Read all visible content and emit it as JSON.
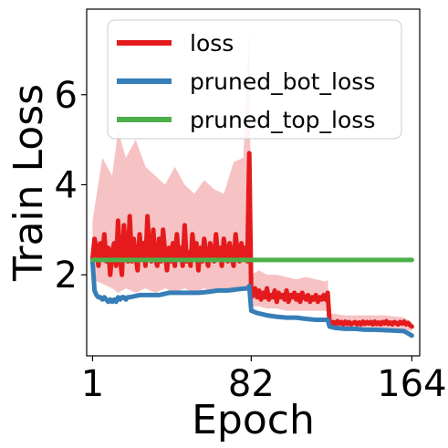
{
  "chart_data": {
    "type": "line",
    "xlabel": "Epoch",
    "ylabel": "Train Loss",
    "xlim": [
      -2,
      168
    ],
    "ylim": [
      0.2,
      7.9
    ],
    "xticks": [
      1,
      82,
      164
    ],
    "yticks": [
      2,
      4,
      6
    ],
    "grid": false,
    "legend_position": "top",
    "series": [
      {
        "name": "loss",
        "color": "#e41a1c",
        "band_color": "#f4b3b4",
        "points": [
          [
            1,
            2.35
          ],
          [
            2,
            2.8
          ],
          [
            3,
            2.6
          ],
          [
            4,
            2.2
          ],
          [
            5,
            2.7
          ],
          [
            6,
            2.4
          ],
          [
            7,
            2.9
          ],
          [
            8,
            2.3
          ],
          [
            9,
            2.6
          ],
          [
            10,
            2.0
          ],
          [
            11,
            2.5
          ],
          [
            12,
            2.7
          ],
          [
            13,
            2.2
          ],
          [
            14,
            3.2
          ],
          [
            15,
            2.4
          ],
          [
            16,
            2.0
          ],
          [
            17,
            3.1
          ],
          [
            18,
            2.5
          ],
          [
            19,
            2.3
          ],
          [
            20,
            3.3
          ],
          [
            21,
            2.3
          ],
          [
            22,
            2.8
          ],
          [
            23,
            2.4
          ],
          [
            24,
            2.1
          ],
          [
            25,
            2.9
          ],
          [
            26,
            2.4
          ],
          [
            27,
            2.7
          ],
          [
            28,
            2.2
          ],
          [
            29,
            3.3
          ],
          [
            30,
            2.5
          ],
          [
            31,
            2.3
          ],
          [
            32,
            3.0
          ],
          [
            33,
            2.4
          ],
          [
            34,
            2.2
          ],
          [
            35,
            2.8
          ],
          [
            36,
            2.3
          ],
          [
            37,
            3.0
          ],
          [
            38,
            2.5
          ],
          [
            39,
            2.1
          ],
          [
            40,
            2.6
          ],
          [
            41,
            2.3
          ],
          [
            42,
            2.7
          ],
          [
            43,
            2.2
          ],
          [
            44,
            2.9
          ],
          [
            45,
            2.4
          ],
          [
            46,
            2.6
          ],
          [
            47,
            2.2
          ],
          [
            48,
            3.1
          ],
          [
            49,
            2.3
          ],
          [
            50,
            2.5
          ],
          [
            51,
            2.2
          ],
          [
            52,
            2.9
          ],
          [
            53,
            2.4
          ],
          [
            54,
            2.7
          ],
          [
            55,
            2.1
          ],
          [
            56,
            2.6
          ],
          [
            57,
            2.3
          ],
          [
            58,
            2.8
          ],
          [
            59,
            2.4
          ],
          [
            60,
            2.2
          ],
          [
            61,
            2.7
          ],
          [
            62,
            2.5
          ],
          [
            63,
            2.3
          ],
          [
            64,
            2.9
          ],
          [
            65,
            2.4
          ],
          [
            66,
            2.6
          ],
          [
            67,
            2.2
          ],
          [
            68,
            2.8
          ],
          [
            69,
            2.5
          ],
          [
            70,
            2.3
          ],
          [
            71,
            2.7
          ],
          [
            72,
            2.4
          ],
          [
            73,
            2.2
          ],
          [
            74,
            2.9
          ],
          [
            75,
            2.5
          ],
          [
            76,
            2.3
          ],
          [
            77,
            2.7
          ],
          [
            78,
            2.4
          ],
          [
            79,
            2.6
          ],
          [
            80,
            2.3
          ],
          [
            81,
            4.7
          ],
          [
            82,
            1.5
          ],
          [
            83,
            1.55
          ],
          [
            84,
            1.7
          ],
          [
            85,
            1.5
          ],
          [
            86,
            1.65
          ],
          [
            87,
            1.45
          ],
          [
            88,
            1.6
          ],
          [
            89,
            1.5
          ],
          [
            90,
            1.7
          ],
          [
            91,
            1.45
          ],
          [
            92,
            1.55
          ],
          [
            93,
            1.5
          ],
          [
            94,
            1.65
          ],
          [
            95,
            1.4
          ],
          [
            96,
            1.6
          ],
          [
            97,
            1.5
          ],
          [
            98,
            1.55
          ],
          [
            99,
            1.45
          ],
          [
            100,
            1.65
          ],
          [
            101,
            1.4
          ],
          [
            102,
            1.55
          ],
          [
            103,
            1.5
          ],
          [
            104,
            1.6
          ],
          [
            105,
            1.45
          ],
          [
            106,
            1.55
          ],
          [
            107,
            1.4
          ],
          [
            108,
            1.6
          ],
          [
            109,
            1.5
          ],
          [
            110,
            1.45
          ],
          [
            111,
            1.55
          ],
          [
            112,
            1.4
          ],
          [
            113,
            1.5
          ],
          [
            114,
            1.45
          ],
          [
            115,
            1.55
          ],
          [
            116,
            1.4
          ],
          [
            117,
            1.5
          ],
          [
            118,
            1.45
          ],
          [
            119,
            1.55
          ],
          [
            120,
            1.45
          ],
          [
            121,
            1.6
          ],
          [
            122,
            0.95
          ],
          [
            123,
            0.9
          ],
          [
            124,
            0.95
          ],
          [
            125,
            0.9
          ],
          [
            126,
            0.97
          ],
          [
            127,
            0.92
          ],
          [
            128,
            0.95
          ],
          [
            129,
            0.9
          ],
          [
            130,
            0.96
          ],
          [
            131,
            0.91
          ],
          [
            132,
            0.95
          ],
          [
            133,
            0.9
          ],
          [
            134,
            0.93
          ],
          [
            135,
            0.95
          ],
          [
            136,
            0.9
          ],
          [
            137,
            0.94
          ],
          [
            138,
            0.9
          ],
          [
            139,
            0.96
          ],
          [
            140,
            0.91
          ],
          [
            141,
            0.95
          ],
          [
            142,
            0.92
          ],
          [
            143,
            0.95
          ],
          [
            144,
            0.9
          ],
          [
            145,
            0.96
          ],
          [
            146,
            0.91
          ],
          [
            147,
            0.94
          ],
          [
            148,
            0.9
          ],
          [
            149,
            0.95
          ],
          [
            150,
            0.92
          ],
          [
            151,
            0.97
          ],
          [
            152,
            0.91
          ],
          [
            153,
            0.94
          ],
          [
            154,
            0.9
          ],
          [
            155,
            0.95
          ],
          [
            156,
            0.93
          ],
          [
            157,
            0.9
          ],
          [
            158,
            0.95
          ],
          [
            159,
            0.92
          ],
          [
            160,
            0.96
          ],
          [
            161,
            0.9
          ],
          [
            162,
            0.93
          ],
          [
            163,
            0.88
          ],
          [
            164,
            0.85
          ]
        ],
        "band": [
          [
            1,
            1.9,
            3.2
          ],
          [
            6,
            1.8,
            4.6
          ],
          [
            11,
            1.7,
            4.2
          ],
          [
            14,
            1.6,
            5.2
          ],
          [
            18,
            1.7,
            4.6
          ],
          [
            23,
            1.6,
            5.0
          ],
          [
            28,
            1.7,
            4.4
          ],
          [
            33,
            1.6,
            4.2
          ],
          [
            38,
            1.7,
            4.0
          ],
          [
            43,
            1.6,
            4.4
          ],
          [
            48,
            1.7,
            4.0
          ],
          [
            53,
            1.6,
            3.8
          ],
          [
            58,
            1.7,
            4.1
          ],
          [
            63,
            1.6,
            3.9
          ],
          [
            68,
            1.7,
            3.8
          ],
          [
            73,
            1.6,
            4.5
          ],
          [
            78,
            1.7,
            4.6
          ],
          [
            81,
            1.8,
            7.5
          ],
          [
            82,
            1.3,
            2.0
          ],
          [
            86,
            1.3,
            2.1
          ],
          [
            90,
            1.25,
            2.0
          ],
          [
            95,
            1.25,
            2.0
          ],
          [
            100,
            1.2,
            1.95
          ],
          [
            105,
            1.2,
            1.9
          ],
          [
            110,
            1.2,
            1.95
          ],
          [
            115,
            1.2,
            1.9
          ],
          [
            120,
            1.2,
            1.85
          ],
          [
            121,
            1.2,
            1.9
          ],
          [
            122,
            0.8,
            1.15
          ],
          [
            130,
            0.8,
            1.1
          ],
          [
            140,
            0.8,
            1.1
          ],
          [
            150,
            0.78,
            1.1
          ],
          [
            160,
            0.78,
            1.05
          ],
          [
            164,
            0.75,
            0.95
          ]
        ]
      },
      {
        "name": "pruned_bot_loss",
        "color": "#377eb8",
        "points": [
          [
            1,
            2.3
          ],
          [
            2,
            1.65
          ],
          [
            3,
            1.55
          ],
          [
            4,
            1.5
          ],
          [
            5,
            1.5
          ],
          [
            6,
            1.45
          ],
          [
            7,
            1.5
          ],
          [
            8,
            1.45
          ],
          [
            9,
            1.4
          ],
          [
            10,
            1.45
          ],
          [
            11,
            1.4
          ],
          [
            12,
            1.45
          ],
          [
            13,
            1.4
          ],
          [
            14,
            1.5
          ],
          [
            15,
            1.45
          ],
          [
            16,
            1.5
          ],
          [
            17,
            1.5
          ],
          [
            18,
            1.45
          ],
          [
            19,
            1.5
          ],
          [
            20,
            1.5
          ],
          [
            25,
            1.55
          ],
          [
            30,
            1.55
          ],
          [
            35,
            1.55
          ],
          [
            40,
            1.6
          ],
          [
            45,
            1.6
          ],
          [
            50,
            1.6
          ],
          [
            55,
            1.6
          ],
          [
            60,
            1.62
          ],
          [
            65,
            1.65
          ],
          [
            70,
            1.65
          ],
          [
            75,
            1.68
          ],
          [
            80,
            1.7
          ],
          [
            81,
            1.75
          ],
          [
            82,
            1.2
          ],
          [
            85,
            1.15
          ],
          [
            90,
            1.1
          ],
          [
            95,
            1.07
          ],
          [
            100,
            1.05
          ],
          [
            105,
            1.05
          ],
          [
            110,
            1.02
          ],
          [
            115,
            1.0
          ],
          [
            120,
            1.0
          ],
          [
            121,
            1.0
          ],
          [
            122,
            0.85
          ],
          [
            125,
            0.82
          ],
          [
            130,
            0.8
          ],
          [
            135,
            0.8
          ],
          [
            140,
            0.78
          ],
          [
            145,
            0.78
          ],
          [
            150,
            0.77
          ],
          [
            155,
            0.76
          ],
          [
            160,
            0.75
          ],
          [
            162,
            0.7
          ],
          [
            164,
            0.65
          ]
        ]
      },
      {
        "name": "pruned_top_loss",
        "color": "#4daf4a",
        "points": [
          [
            1,
            2.33
          ],
          [
            20,
            2.33
          ],
          [
            40,
            2.33
          ],
          [
            60,
            2.33
          ],
          [
            80,
            2.33
          ],
          [
            100,
            2.33
          ],
          [
            120,
            2.33
          ],
          [
            140,
            2.33
          ],
          [
            164,
            2.33
          ]
        ]
      }
    ]
  }
}
